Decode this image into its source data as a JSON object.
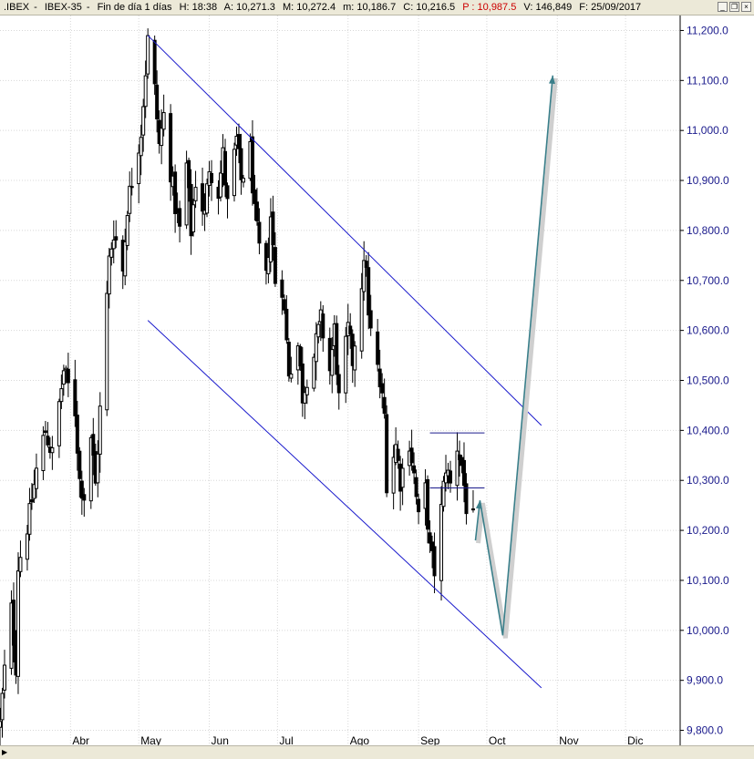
{
  "header": {
    "symbol": ".IBEX",
    "name": "IBEX-35",
    "period": "Fin de día 1 días",
    "h": "H: 18:38",
    "a": "A: 10,271.3",
    "m": "M: 10,272.4",
    "mn": "m: 10,186.7",
    "c": "C: 10,216.5",
    "p": "P : 10,987.5",
    "v": "V: 146,849",
    "f": "F: 25/09/2017",
    "minimize": "_",
    "restore": "❐",
    "close": "×"
  },
  "colors": {
    "candles": "#000000",
    "channel": "#1a1acc",
    "horizontal_lines": "#1a1a8c",
    "arrow": "#3a7f8a",
    "axis_text": "#1a1a8c"
  },
  "icons": {
    "scroll_left": "triangle-right-icon"
  },
  "chart_data": {
    "type": "candlestick",
    "y_ticks": [
      9800,
      9900,
      10000,
      10100,
      10200,
      10300,
      10400,
      10500,
      10600,
      10700,
      10800,
      10900,
      11000,
      11100,
      11200
    ],
    "y_tick_labels": [
      "9,800.0",
      "9,900.0",
      "10,000.0",
      "10,100.0",
      "10,200.0",
      "10,300.0",
      "10,400.0",
      "10,500.0",
      "10,600.0",
      "10,700.0",
      "10,800.0",
      "10,900.0",
      "11,000.0",
      "11,100.0",
      "11,200.0"
    ],
    "ylim": [
      9770,
      11230
    ],
    "x_labels": [
      {
        "label": "Abr",
        "date": "2017-04-01"
      },
      {
        "label": "May",
        "date": "2017-05-01"
      },
      {
        "label": "Jun",
        "date": "2017-06-01"
      },
      {
        "label": "Jul",
        "date": "2017-07-01"
      },
      {
        "label": "Ago",
        "date": "2017-08-01"
      },
      {
        "label": "Sep",
        "date": "2017-09-01"
      },
      {
        "label": "Oct",
        "date": "2017-10-01"
      },
      {
        "label": "Nov",
        "date": "2017-11-01"
      },
      {
        "label": "Dic",
        "date": "2017-12-01"
      }
    ],
    "xlim": [
      "2017-03-01",
      "2017-12-25"
    ],
    "grid": true,
    "anchors": [
      {
        "date": "2017-03-01",
        "value": 9810
      },
      {
        "date": "2017-03-03",
        "value": 9920
      },
      {
        "date": "2017-03-06",
        "value": 10040
      },
      {
        "date": "2017-03-08",
        "value": 9930
      },
      {
        "date": "2017-03-09",
        "value": 10130
      },
      {
        "date": "2017-03-14",
        "value": 10230
      },
      {
        "date": "2017-03-17",
        "value": 10320
      },
      {
        "date": "2017-03-21",
        "value": 10400
      },
      {
        "date": "2017-03-24",
        "value": 10350
      },
      {
        "date": "2017-03-29",
        "value": 10520
      },
      {
        "date": "2017-04-03",
        "value": 10440
      },
      {
        "date": "2017-04-05",
        "value": 10300
      },
      {
        "date": "2017-04-07",
        "value": 10270
      },
      {
        "date": "2017-04-10",
        "value": 10390
      },
      {
        "date": "2017-04-12",
        "value": 10290
      },
      {
        "date": "2017-04-18",
        "value": 10740
      },
      {
        "date": "2017-04-20",
        "value": 10800
      },
      {
        "date": "2017-04-24",
        "value": 10720
      },
      {
        "date": "2017-04-26",
        "value": 10850
      },
      {
        "date": "2017-04-28",
        "value": 10900
      },
      {
        "date": "2017-05-02",
        "value": 11000
      },
      {
        "date": "2017-05-04",
        "value": 11120
      },
      {
        "date": "2017-05-05",
        "value": 11180
      },
      {
        "date": "2017-05-08",
        "value": 11080
      },
      {
        "date": "2017-05-10",
        "value": 10970
      },
      {
        "date": "2017-05-12",
        "value": 11030
      },
      {
        "date": "2017-05-15",
        "value": 10920
      },
      {
        "date": "2017-05-17",
        "value": 10850
      },
      {
        "date": "2017-05-19",
        "value": 10800
      },
      {
        "date": "2017-05-22",
        "value": 10930
      },
      {
        "date": "2017-05-24",
        "value": 10800
      },
      {
        "date": "2017-05-26",
        "value": 10900
      },
      {
        "date": "2017-05-30",
        "value": 10830
      },
      {
        "date": "2017-06-01",
        "value": 10930
      },
      {
        "date": "2017-06-05",
        "value": 10880
      },
      {
        "date": "2017-06-07",
        "value": 10950
      },
      {
        "date": "2017-06-09",
        "value": 10850
      },
      {
        "date": "2017-06-13",
        "value": 10980
      },
      {
        "date": "2017-06-15",
        "value": 10900
      },
      {
        "date": "2017-06-19",
        "value": 10960
      },
      {
        "date": "2017-06-21",
        "value": 10830
      },
      {
        "date": "2017-06-23",
        "value": 10760
      },
      {
        "date": "2017-06-26",
        "value": 10700
      },
      {
        "date": "2017-06-28",
        "value": 10830
      },
      {
        "date": "2017-06-30",
        "value": 10700
      },
      {
        "date": "2017-07-03",
        "value": 10690
      },
      {
        "date": "2017-07-06",
        "value": 10520
      },
      {
        "date": "2017-07-10",
        "value": 10570
      },
      {
        "date": "2017-07-12",
        "value": 10470
      },
      {
        "date": "2017-07-14",
        "value": 10510
      },
      {
        "date": "2017-07-17",
        "value": 10550
      },
      {
        "date": "2017-07-20",
        "value": 10620
      },
      {
        "date": "2017-07-24",
        "value": 10520
      },
      {
        "date": "2017-07-26",
        "value": 10600
      },
      {
        "date": "2017-07-28",
        "value": 10460
      },
      {
        "date": "2017-08-01",
        "value": 10600
      },
      {
        "date": "2017-08-03",
        "value": 10540
      },
      {
        "date": "2017-08-07",
        "value": 10700
      },
      {
        "date": "2017-08-09",
        "value": 10740
      },
      {
        "date": "2017-08-10",
        "value": 10620
      },
      {
        "date": "2017-08-14",
        "value": 10520
      },
      {
        "date": "2017-08-17",
        "value": 10430
      },
      {
        "date": "2017-08-18",
        "value": 10300
      },
      {
        "date": "2017-08-22",
        "value": 10370
      },
      {
        "date": "2017-08-24",
        "value": 10300
      },
      {
        "date": "2017-08-28",
        "value": 10380
      },
      {
        "date": "2017-08-30",
        "value": 10310
      },
      {
        "date": "2017-09-01",
        "value": 10220
      },
      {
        "date": "2017-09-04",
        "value": 10280
      },
      {
        "date": "2017-09-06",
        "value": 10160
      },
      {
        "date": "2017-09-08",
        "value": 10120
      },
      {
        "date": "2017-09-11",
        "value": 10240
      },
      {
        "date": "2017-09-13",
        "value": 10330
      },
      {
        "date": "2017-09-15",
        "value": 10290
      },
      {
        "date": "2017-09-18",
        "value": 10370
      },
      {
        "date": "2017-09-20",
        "value": 10330
      },
      {
        "date": "2017-09-22",
        "value": 10250
      },
      {
        "date": "2017-09-25",
        "value": 10216.5
      }
    ],
    "channel_upper": [
      {
        "date": "2017-05-05",
        "value": 11190
      },
      {
        "date": "2017-10-25",
        "value": 10410
      }
    ],
    "channel_lower": [
      {
        "date": "2017-05-05",
        "value": 10620
      },
      {
        "date": "2017-10-25",
        "value": 9885
      }
    ],
    "horizontal_lines": [
      {
        "start": "2017-09-06",
        "end": "2017-09-30",
        "value": 10395
      },
      {
        "start": "2017-09-06",
        "end": "2017-09-30",
        "value": 10285
      }
    ],
    "projection_arrow": [
      {
        "date": "2017-09-26",
        "value": 10180
      },
      {
        "date": "2017-09-28",
        "value": 10260
      },
      {
        "date": "2017-10-08",
        "value": 9990
      },
      {
        "date": "2017-10-30",
        "value": 11110
      }
    ]
  }
}
